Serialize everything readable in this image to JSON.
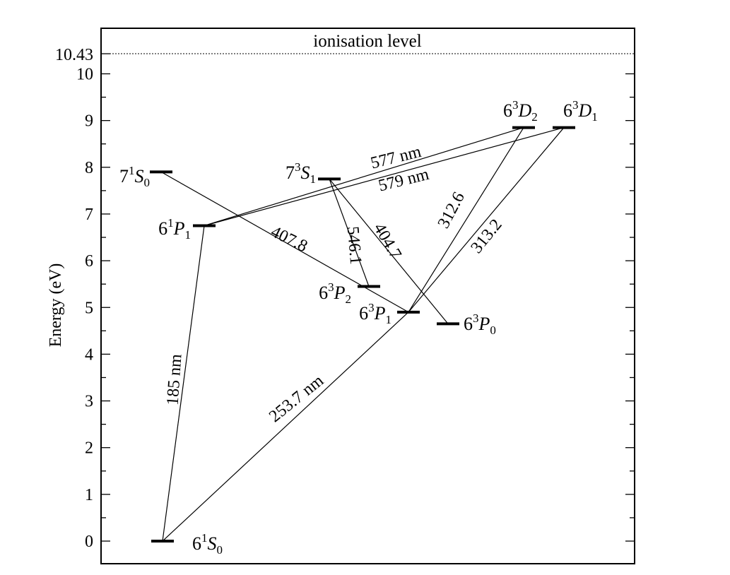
{
  "diagram": {
    "type": "energy-level diagram",
    "y_axis": {
      "label": "Energy (eV)",
      "range": [
        0,
        10.43
      ],
      "major_ticks": [
        "0",
        "1",
        "2",
        "3",
        "4",
        "5",
        "6",
        "7",
        "8",
        "9",
        "10"
      ],
      "minor_ticks": [
        0.5,
        1.5,
        2.5,
        3.5,
        4.5,
        5.5,
        6.5,
        7.5,
        8.5,
        9.5
      ],
      "extra_tick": "10.43"
    },
    "ionisation": {
      "label": "ionisation level",
      "energy": 10.43
    },
    "levels": [
      {
        "id": "6S0",
        "n": "6",
        "mult": "1",
        "L": "S",
        "J": "0",
        "energy": 0
      },
      {
        "id": "6P1_singlet",
        "n": "6",
        "mult": "1",
        "L": "P",
        "J": "1",
        "energy": 6.75
      },
      {
        "id": "7S0",
        "n": "7",
        "mult": "1",
        "L": "S",
        "J": "0",
        "energy": 7.9
      },
      {
        "id": "7S1",
        "n": "7",
        "mult": "3",
        "L": "S",
        "J": "1",
        "energy": 7.75
      },
      {
        "id": "6P2",
        "n": "6",
        "mult": "3",
        "L": "P",
        "J": "2",
        "energy": 5.45
      },
      {
        "id": "6P1_triplet",
        "n": "6",
        "mult": "3",
        "L": "P",
        "J": "1",
        "energy": 4.9
      },
      {
        "id": "6P0",
        "n": "6",
        "mult": "3",
        "L": "P",
        "J": "0",
        "energy": 4.65
      },
      {
        "id": "6D2",
        "n": "6",
        "mult": "3",
        "L": "D",
        "J": "2",
        "energy": 8.85
      },
      {
        "id": "6D1",
        "n": "6",
        "mult": "3",
        "L": "D",
        "J": "1",
        "energy": 8.85
      }
    ],
    "transitions": [
      {
        "from": "6P1_singlet",
        "to": "6S0",
        "label": "185 nm"
      },
      {
        "from": "6P1_triplet",
        "to": "6S0",
        "label": "253.7 nm"
      },
      {
        "from": "7S0",
        "to": "6P1_triplet",
        "label": "407.8"
      },
      {
        "from": "7S1",
        "to": "6P2",
        "label": "546.1"
      },
      {
        "from": "7S1",
        "to": "6P0",
        "label": "404.7"
      },
      {
        "from": "6D2",
        "to": "6P1_singlet",
        "label": "577 nm"
      },
      {
        "from": "6D1",
        "to": "6P1_singlet",
        "label": "579 nm"
      },
      {
        "from": "6D2",
        "to": "6P1_triplet",
        "label": "312.6"
      },
      {
        "from": "6D1",
        "to": "6P1_triplet",
        "label": "313.2"
      }
    ]
  }
}
